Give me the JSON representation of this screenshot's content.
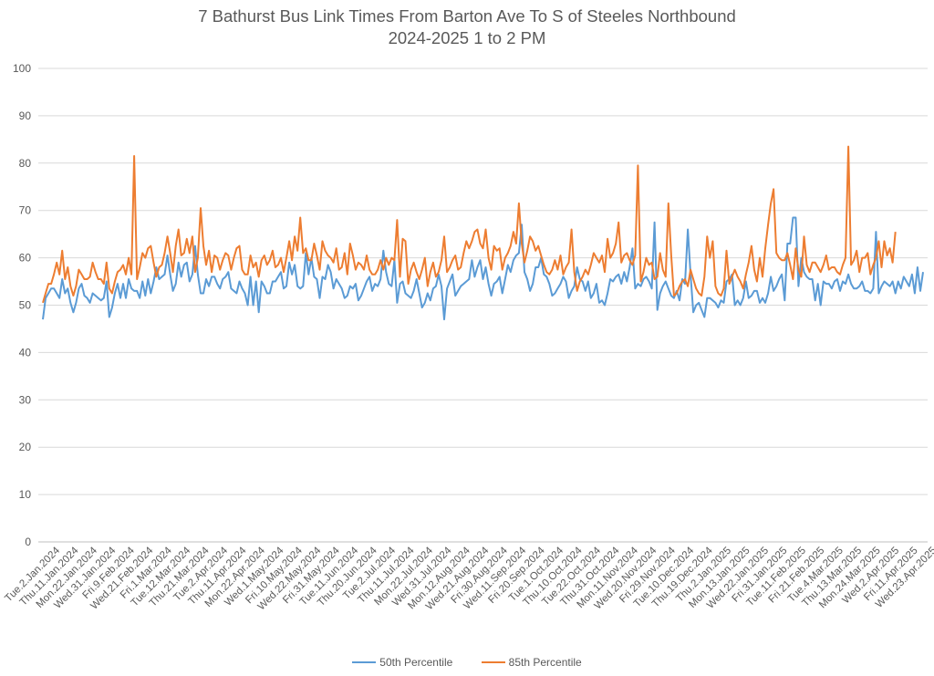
{
  "chart_data": {
    "type": "line",
    "title": "7 Bathurst Bus Link Times From Barton Ave To S of Steeles Northbound",
    "subtitle": "2024-2025 1 to 2 PM",
    "xlabel": "",
    "ylabel": "",
    "ylim": [
      0,
      100
    ],
    "yticks": [
      0,
      10,
      20,
      30,
      40,
      50,
      60,
      70,
      80,
      90,
      100
    ],
    "grid": true,
    "legend_position": "bottom",
    "x_tick_labels": [
      "Tue.2.Jan.2024",
      "Thu.11.Jan.2024",
      "Mon.22.Jan.2024",
      "Wed.31.Jan.2024",
      "Fri.9.Feb.2024",
      "Wed.21.Feb.2024",
      "Fri.1.Mar.2024",
      "Tue.12.Mar.2024",
      "Thu.21.Mar.2024",
      "Tue.2.Apr.2024",
      "Thu.11.Apr.2024",
      "Mon.22.Apr.2024",
      "Wed.1.May.2024",
      "Fri.10.May.2024",
      "Wed.22.May.2024",
      "Fri.31.May.2024",
      "Tue.11.Jun.2024",
      "Thu.20.Jun.2024",
      "Tue.2.Jul.2024",
      "Thu.11.Jul.2024",
      "Mon.22.Jul.2024",
      "Wed.31.Jul.2024",
      "Mon.12.Aug.2024",
      "Wed.21.Aug.2024",
      "Fri.30.Aug.2024",
      "Wed.11.Sep.2024",
      "Fri.20.Sep.2024",
      "Tue.1.Oct.2024",
      "Thu.10.Oct.2024",
      "Tue.22.Oct.2024",
      "Thu.31.Oct.2024",
      "Mon.11.Nov.2024",
      "Wed.20.Nov.2024",
      "Fri.29.Nov.2024",
      "Tue.10.Dec.2024",
      "Thu.19.Dec.2024",
      "Thu.2.Jan.2025",
      "Mon.13.Jan.2025",
      "Wed.22.Jan.2025",
      "Fri.31.Jan.2025",
      "Tue.11.Feb.2025",
      "Fri.21.Feb.2025",
      "Tue.4.Mar.2025",
      "Thu.13.Mar.2025",
      "Mon.24.Mar.2025",
      "Wed.2.Apr.2025",
      "Fri.11.Apr.2025",
      "Wed.23.Apr.2025"
    ],
    "series": [
      {
        "name": "50th Percentile",
        "color": "#5b9bd5",
        "values": [
          47.0,
          51.5,
          52.5,
          53.5,
          53.5,
          52.5,
          51.5,
          55.5,
          52.5,
          53.5,
          50.5,
          48.5,
          50.5,
          53.5,
          54.5,
          52.0,
          51.5,
          50.5,
          52.5,
          52.0,
          51.5,
          51.0,
          51.5,
          55.0,
          47.5,
          49.5,
          52.5,
          54.5,
          51.5,
          54.5,
          51.5,
          55.5,
          53.5,
          53.0,
          53.0,
          51.5,
          55.0,
          52.0,
          55.5,
          52.5,
          55.0,
          58.0,
          55.5,
          56.0,
          56.5,
          60.5,
          56.5,
          53.0,
          54.5,
          59.0,
          56.0,
          58.5,
          59.0,
          55.0,
          56.5,
          62.5,
          56.5,
          52.5,
          52.5,
          55.5,
          54.0,
          56.0,
          56.0,
          54.5,
          53.5,
          55.5,
          56.0,
          57.0,
          53.5,
          53.0,
          52.5,
          55.0,
          53.5,
          52.5,
          50.0,
          56.0,
          50.0,
          55.0,
          48.5,
          55.0,
          54.0,
          52.5,
          52.5,
          55.0,
          55.0,
          56.0,
          57.0,
          53.5,
          54.0,
          59.0,
          56.5,
          58.5,
          54.0,
          53.5,
          54.0,
          61.0,
          56.5,
          60.0,
          56.0,
          55.5,
          51.5,
          56.0,
          55.5,
          58.5,
          57.0,
          53.5,
          55.5,
          54.5,
          53.5,
          51.5,
          52.0,
          54.0,
          53.5,
          54.5,
          51.0,
          52.0,
          53.5,
          55.0,
          56.0,
          53.0,
          54.5,
          54.0,
          55.5,
          61.5,
          57.0,
          54.5,
          54.0,
          59.5,
          50.5,
          54.5,
          55.0,
          52.5,
          52.0,
          51.5,
          53.0,
          55.5,
          52.5,
          49.5,
          50.5,
          52.5,
          51.0,
          53.5,
          54.0,
          56.5,
          54.0,
          47.0,
          53.5,
          55.0,
          56.5,
          52.0,
          53.0,
          54.0,
          54.5,
          55.0,
          55.5,
          59.5,
          56.0,
          58.0,
          59.5,
          55.5,
          58.0,
          54.5,
          52.0,
          54.5,
          55.0,
          56.0,
          52.5,
          55.5,
          58.5,
          57.0,
          59.5,
          60.5,
          61.0,
          67.0,
          57.0,
          55.5,
          53.0,
          54.5,
          58.0,
          58.0,
          60.0,
          56.5,
          56.0,
          54.5,
          52.0,
          52.5,
          53.5,
          54.5,
          56.0,
          55.0,
          51.5,
          53.0,
          54.0,
          58.0,
          55.5,
          55.0,
          53.0,
          55.0,
          51.5,
          52.5,
          54.5,
          50.5,
          51.0,
          50.0,
          52.5,
          55.5,
          55.0,
          56.0,
          56.5,
          54.5,
          57.0,
          55.0,
          58.0,
          62.0,
          53.5,
          54.5,
          54.0,
          55.5,
          56.0,
          55.0,
          53.5,
          67.5,
          49.0,
          52.5,
          54.0,
          55.0,
          53.5,
          52.0,
          51.5,
          53.0,
          51.0,
          55.5,
          54.5,
          66.0,
          56.5,
          48.5,
          50.0,
          50.5,
          49.0,
          47.5,
          51.5,
          51.5,
          51.0,
          50.5,
          49.5,
          51.0,
          50.5,
          55.0,
          55.5,
          56.5,
          50.0,
          51.0,
          50.0,
          51.5,
          55.0,
          51.5,
          52.0,
          53.0,
          53.0,
          50.5,
          51.5,
          50.5,
          52.5,
          56.0,
          53.0,
          54.0,
          55.5,
          56.5,
          51.0,
          63.0,
          63.0,
          68.5,
          68.5,
          54.0,
          60.0,
          57.0,
          56.0,
          55.5,
          55.5,
          51.0,
          54.5,
          50.0,
          55.0,
          54.5,
          54.5,
          53.5,
          55.0,
          55.5,
          53.0,
          55.0,
          54.5,
          56.5,
          54.5,
          53.5,
          53.5,
          54.0,
          55.0,
          53.0,
          53.0,
          52.5,
          53.5,
          65.5,
          52.5,
          54.0,
          55.0,
          54.5,
          54.0,
          55.0,
          52.5,
          55.0,
          53.5,
          56.0,
          55.0,
          54.0,
          56.5,
          52.5,
          58.0,
          53.0,
          57.0
        ]
      },
      {
        "name": "85th Percentile",
        "color": "#ed7d31",
        "values": [
          50.5,
          52.5,
          54.5,
          54.5,
          56.5,
          59.0,
          56.5,
          61.5,
          55.5,
          58.0,
          54.0,
          52.0,
          54.0,
          57.5,
          56.5,
          55.5,
          55.5,
          56.0,
          59.0,
          57.0,
          55.5,
          55.5,
          54.5,
          59.0,
          53.5,
          52.5,
          55.0,
          57.0,
          57.5,
          58.5,
          56.5,
          60.0,
          56.5,
          81.5,
          55.5,
          58.0,
          61.0,
          60.0,
          62.0,
          62.5,
          59.0,
          56.0,
          58.0,
          58.5,
          61.0,
          64.5,
          61.0,
          57.0,
          62.5,
          66.0,
          60.5,
          61.0,
          64.0,
          61.0,
          64.5,
          57.0,
          60.0,
          70.5,
          62.5,
          58.5,
          61.5,
          57.0,
          60.5,
          60.0,
          57.5,
          59.5,
          61.0,
          60.5,
          57.5,
          60.0,
          62.0,
          62.5,
          57.5,
          56.5,
          56.5,
          60.5,
          58.0,
          59.0,
          56.0,
          59.5,
          60.5,
          58.5,
          59.5,
          61.5,
          58.0,
          58.5,
          60.0,
          57.0,
          60.0,
          63.5,
          59.5,
          64.5,
          61.5,
          68.5,
          61.0,
          62.0,
          59.5,
          59.5,
          63.0,
          60.5,
          57.5,
          63.5,
          61.5,
          60.5,
          60.0,
          59.0,
          62.0,
          57.5,
          58.0,
          61.0,
          56.5,
          63.0,
          60.5,
          57.5,
          59.0,
          58.5,
          57.5,
          60.5,
          57.5,
          56.5,
          56.5,
          57.5,
          59.5,
          57.5,
          60.0,
          58.5,
          60.0,
          59.5,
          68.0,
          56.0,
          64.0,
          63.5,
          54.5,
          57.5,
          59.0,
          57.0,
          55.5,
          57.5,
          60.0,
          54.0,
          57.0,
          59.0,
          56.0,
          57.0,
          59.5,
          64.5,
          57.0,
          58.0,
          59.5,
          60.5,
          57.5,
          58.0,
          61.0,
          63.5,
          62.0,
          63.5,
          65.5,
          66.0,
          63.0,
          62.0,
          66.0,
          60.0,
          57.5,
          62.5,
          61.5,
          62.0,
          57.5,
          60.0,
          61.0,
          62.5,
          65.5,
          63.0,
          71.5,
          63.0,
          59.0,
          61.5,
          64.5,
          63.5,
          61.5,
          62.5,
          60.5,
          58.5,
          57.0,
          56.5,
          57.5,
          59.5,
          57.5,
          60.5,
          56.5,
          58.0,
          59.0,
          66.0,
          57.0,
          53.0,
          55.0,
          56.0,
          57.5,
          56.5,
          58.5,
          61.0,
          60.0,
          59.0,
          60.5,
          57.0,
          64.0,
          60.0,
          61.0,
          63.0,
          67.5,
          59.0,
          60.5,
          61.0,
          59.5,
          58.5,
          60.5,
          79.5,
          55.0,
          57.0,
          60.0,
          58.5,
          59.0,
          55.5,
          56.0,
          61.0,
          57.5,
          56.0,
          71.5,
          60.5,
          52.0,
          52.5,
          54.0,
          55.0,
          55.5,
          54.0,
          57.5,
          55.5,
          53.5,
          52.5,
          52.0,
          56.0,
          64.5,
          60.0,
          63.5,
          54.0,
          52.5,
          52.0,
          53.5,
          61.5,
          54.5,
          56.0,
          57.5,
          56.0,
          55.0,
          53.5,
          56.5,
          59.0,
          62.5,
          57.5,
          55.0,
          60.0,
          56.0,
          62.0,
          67.0,
          71.5,
          74.5,
          61.0,
          60.0,
          59.5,
          59.5,
          61.0,
          58.5,
          55.5,
          62.0,
          57.5,
          56.0,
          64.5,
          58.5,
          57.0,
          59.0,
          59.0,
          58.0,
          57.0,
          58.5,
          60.5,
          57.5,
          58.0,
          58.0,
          57.0,
          56.5,
          58.5,
          60.0,
          83.5,
          58.5,
          59.5,
          61.5,
          57.0,
          60.0,
          60.0,
          61.0,
          56.5,
          58.5,
          60.0,
          63.5,
          58.0,
          63.5,
          60.5,
          62.0,
          59.0,
          65.5
        ]
      }
    ]
  }
}
